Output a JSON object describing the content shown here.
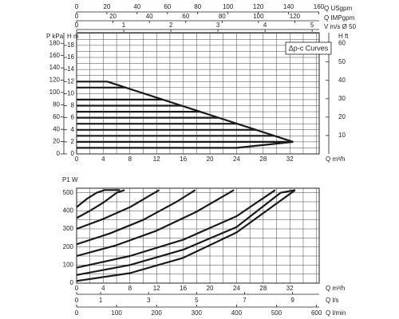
{
  "chart_data": [
    {
      "type": "line",
      "annotation": "Δp-c Curves",
      "color": "#1a1a1a",
      "xlabel": "Q m³/h",
      "xlim": [
        0,
        36.4
      ],
      "xticks": [
        0,
        4,
        8,
        12,
        16,
        20,
        24,
        28,
        32
      ],
      "xgrid": [
        0,
        2,
        4,
        6,
        8,
        10,
        12,
        14,
        16,
        18,
        20,
        22,
        24,
        26,
        28,
        30,
        32,
        34,
        36
      ],
      "ylabel": "H m",
      "ylim": [
        0,
        20.1
      ],
      "yticks": [
        0,
        2,
        4,
        6,
        8,
        10,
        12,
        14,
        16,
        18
      ],
      "ygrid": [
        0,
        1,
        2,
        3,
        4,
        5,
        6,
        7,
        8,
        9,
        10,
        11,
        12,
        13,
        14,
        15,
        16,
        17,
        18,
        19,
        20
      ],
      "y_kpa": {
        "label": "P kPa",
        "lim": [
          0,
          197.2
        ],
        "ticks": [
          0,
          20,
          40,
          60,
          80,
          100,
          120,
          140,
          160,
          180
        ]
      },
      "y2label": "H ft",
      "y2lim": [
        0,
        65.9
      ],
      "y2ticks": [
        10,
        20,
        30,
        40,
        50,
        60
      ],
      "top_axes": [
        {
          "label": "Q USgpm",
          "lim": [
            0,
            160.3
          ],
          "ticks": [
            0,
            20,
            40,
            60,
            80,
            100,
            120,
            140,
            160
          ]
        },
        {
          "label": "Q IMPgpm",
          "lim": [
            0,
            133.4
          ],
          "ticks": [
            0,
            20,
            40,
            60,
            80,
            100,
            120
          ]
        },
        {
          "label": "V m/s Ø 50",
          "lim": [
            0,
            5.15
          ],
          "ticks": [
            0,
            1,
            2,
            3,
            4,
            5
          ]
        }
      ],
      "series": [
        {
          "x": [
            0,
            4.6,
            32.5
          ],
          "values": [
            12,
            12,
            2
          ]
        },
        {
          "x": [
            0,
            7.4
          ],
          "values": [
            11,
            11
          ]
        },
        {
          "x": [
            0,
            13
          ],
          "values": [
            9,
            9
          ]
        },
        {
          "x": [
            0,
            15.8
          ],
          "values": [
            8,
            8
          ]
        },
        {
          "x": [
            0,
            18.6
          ],
          "values": [
            7,
            7
          ]
        },
        {
          "x": [
            0,
            21.4
          ],
          "values": [
            6,
            6
          ]
        },
        {
          "x": [
            0,
            24.2
          ],
          "values": [
            5,
            5
          ]
        },
        {
          "x": [
            0,
            27
          ],
          "values": [
            4,
            4
          ]
        },
        {
          "x": [
            0,
            29.7
          ],
          "values": [
            3,
            3
          ]
        },
        {
          "x": [
            0,
            32.5
          ],
          "values": [
            2,
            2
          ]
        },
        {
          "x": [
            0,
            24,
            32.5
          ],
          "values": [
            1,
            1,
            2
          ]
        }
      ]
    },
    {
      "type": "line",
      "color": "#1a1a1a",
      "xlabel": "Q m³/h",
      "xlim": [
        0,
        36.4
      ],
      "xticks": [
        0,
        4,
        8,
        12,
        16,
        20,
        24,
        28,
        32
      ],
      "xgrid": [
        0,
        2,
        4,
        6,
        8,
        10,
        12,
        14,
        16,
        18,
        20,
        22,
        24,
        26,
        28,
        30,
        32,
        34,
        36
      ],
      "ylabel": "P1 W",
      "ylim": [
        0,
        525
      ],
      "yticks": [
        0,
        100,
        200,
        300,
        400,
        500
      ],
      "ygrid": [
        0,
        50,
        100,
        150,
        200,
        250,
        300,
        350,
        400,
        450,
        500
      ],
      "bottom_axes": [
        {
          "label": "Q l/s",
          "lim": [
            0,
            10.11
          ],
          "ticks": [
            0,
            1,
            3,
            5,
            7,
            9
          ]
        },
        {
          "label": "Q l/min",
          "lim": [
            0,
            606.7
          ],
          "ticks": [
            0,
            100,
            200,
            300,
            400,
            500,
            600
          ]
        }
      ],
      "series": [
        {
          "x": [
            0,
            1.5,
            3,
            4.2,
            6.5
          ],
          "values": [
            420,
            465,
            500,
            515,
            515
          ]
        },
        {
          "x": [
            0,
            2,
            4,
            6,
            7.2
          ],
          "values": [
            360,
            400,
            445,
            500,
            515
          ]
        },
        {
          "x": [
            0,
            4,
            8,
            11,
            12.4
          ],
          "values": [
            300,
            355,
            420,
            485,
            515
          ]
        },
        {
          "x": [
            0,
            5,
            10,
            15,
            17.8
          ],
          "values": [
            215,
            275,
            350,
            450,
            515
          ]
        },
        {
          "x": [
            0,
            6,
            12,
            18,
            23.6
          ],
          "values": [
            150,
            210,
            290,
            395,
            515
          ]
        },
        {
          "x": [
            0,
            8,
            16,
            24,
            29.8
          ],
          "values": [
            85,
            150,
            240,
            370,
            515
          ]
        },
        {
          "x": [
            0,
            8,
            16,
            24,
            30.6,
            32.8
          ],
          "values": [
            45,
            100,
            185,
            310,
            500,
            515
          ]
        },
        {
          "x": [
            0,
            8,
            16,
            24,
            32.8
          ],
          "values": [
            12,
            55,
            140,
            280,
            515
          ]
        }
      ]
    }
  ]
}
